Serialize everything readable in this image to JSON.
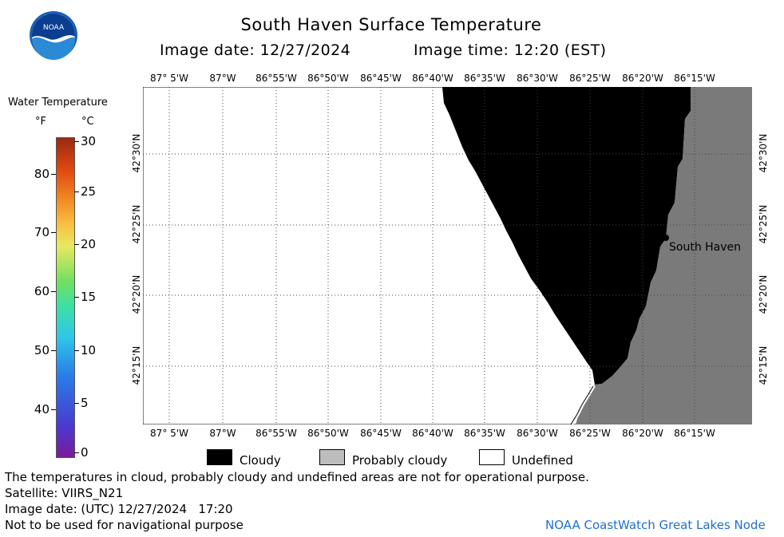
{
  "header": {
    "title": "South Haven Surface Temperature",
    "image_date": "Image date: 12/27/2024",
    "image_time": "Image time: 12:20 (EST)",
    "logo_text": "NOAA"
  },
  "colorbar": {
    "title": "Water Temperature",
    "unit_f": "°F",
    "unit_c": "°C",
    "f_ticks": [
      "80",
      "70",
      "60",
      "50",
      "40"
    ],
    "c_ticks": [
      "30",
      "25",
      "20",
      "15",
      "10",
      "5",
      "0"
    ]
  },
  "map": {
    "lon_labels": [
      "87° 5'W",
      "87°W",
      "86°55'W",
      "86°50'W",
      "86°45'W",
      "86°40'W",
      "86°35'W",
      "86°30'W",
      "86°25'W",
      "86°20'W",
      "86°15'W"
    ],
    "lat_labels": [
      "42°30'N",
      "42°25'N",
      "42°20'N",
      "42°15'N"
    ],
    "city_label": "South Haven",
    "colors": {
      "cloud": "#000000",
      "land": "#7a7a7a",
      "water": "#ffffff"
    }
  },
  "legend": {
    "cloudy": "Cloudy",
    "probably_cloudy": "Probably cloudy",
    "undefined": "Undefined",
    "colors": {
      "cloudy": "#000000",
      "probably_cloudy": "#bdbdbd",
      "undefined": "#ffffff"
    }
  },
  "footer": {
    "note": "The temperatures in cloud, probably cloudy and undefined areas are not for operational purpose.",
    "satellite": "Satellite: VIIRS_N21",
    "utc_date": "Image date: (UTC) 12/27/2024   17:20",
    "nav_warning": "Not to be used for navigational purpose",
    "credit": "NOAA CoastWatch Great Lakes Node"
  }
}
